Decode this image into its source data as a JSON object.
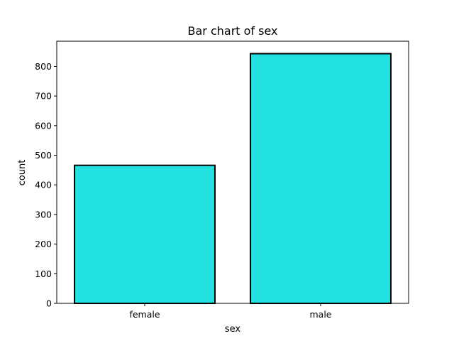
{
  "chart_data": {
    "type": "bar",
    "title": "Bar chart of sex",
    "xlabel": "sex",
    "ylabel": "count",
    "categories": [
      "female",
      "male"
    ],
    "values": [
      466,
      843
    ],
    "ylim": [
      0,
      885
    ],
    "yticks": [
      0,
      100,
      200,
      300,
      400,
      500,
      600,
      700,
      800
    ],
    "grid": false,
    "bar_color": "#22e0e0",
    "edge_color": "#000000"
  }
}
